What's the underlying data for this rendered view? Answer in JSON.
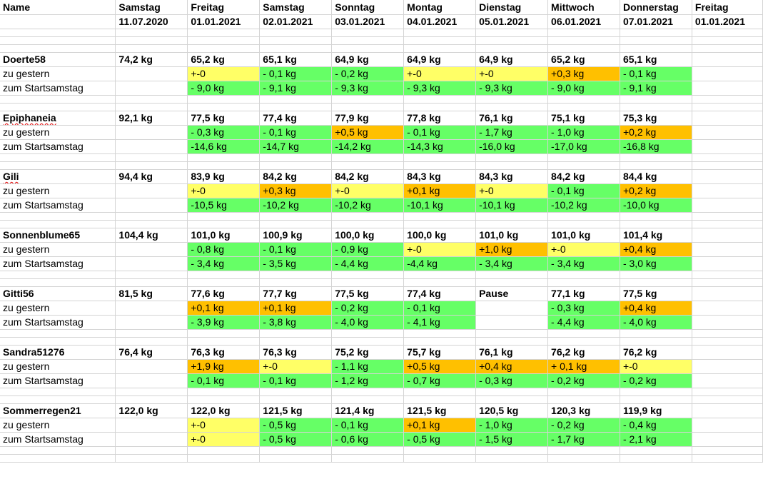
{
  "colors": {
    "yellow": "#ffff66",
    "green": "#66ff66",
    "orange": "#ffc000",
    "grid": "#d4d4d4"
  },
  "header": {
    "name_label": "Name",
    "columns": [
      {
        "day": "Samstag",
        "date": "11.07.2020"
      },
      {
        "day": "Freitag",
        "date": "01.01.2021"
      },
      {
        "day": "Samstag",
        "date": "02.01.2021"
      },
      {
        "day": "Sonntag",
        "date": "03.01.2021"
      },
      {
        "day": "Montag",
        "date": "04.01.2021"
      },
      {
        "day": "Dienstag",
        "date": "05.01.2021"
      },
      {
        "day": "Mittwoch",
        "date": "06.01.2021"
      },
      {
        "day": "Donnerstag",
        "date": "07.01.2021"
      },
      {
        "day": "Freitag",
        "date": "01.01.2021"
      }
    ]
  },
  "row_labels": {
    "diff_day": "zu gestern",
    "diff_start": "zum Startsamstag"
  },
  "people": [
    {
      "name": "Doerte58",
      "spell_flag": false,
      "start": "74,2 kg",
      "weights": [
        "65,2 kg",
        "65,1 kg",
        "64,9 kg",
        "64,9 kg",
        "64,9 kg",
        "65,2 kg",
        "65,1 kg"
      ],
      "diff_day": [
        {
          "v": "+-0",
          "c": "y"
        },
        {
          "v": "- 0,1 kg",
          "c": "g"
        },
        {
          "v": "- 0,2 kg",
          "c": "g"
        },
        {
          "v": "+-0",
          "c": "y"
        },
        {
          "v": "+-0",
          "c": "y"
        },
        {
          "v": "+0,3 kg",
          "c": "o"
        },
        {
          "v": "- 0,1 kg",
          "c": "g"
        }
      ],
      "diff_start": [
        {
          "v": "- 9,0 kg",
          "c": "g"
        },
        {
          "v": "- 9,1 kg",
          "c": "g"
        },
        {
          "v": "- 9,3 kg",
          "c": "g"
        },
        {
          "v": "- 9,3 kg",
          "c": "g"
        },
        {
          "v": "- 9,3 kg",
          "c": "g"
        },
        {
          "v": "- 9,0 kg",
          "c": "g"
        },
        {
          "v": "- 9,1 kg",
          "c": "g"
        }
      ]
    },
    {
      "name": "Epiphaneia",
      "spell_flag": true,
      "start": "92,1 kg",
      "weights": [
        "77,5 kg",
        "77,4 kg",
        "77,9 kg",
        "77,8 kg",
        "76,1 kg",
        "75,1 kg",
        "75,3 kg"
      ],
      "diff_day": [
        {
          "v": "- 0,3 kg",
          "c": "g"
        },
        {
          "v": "- 0,1 kg",
          "c": "g"
        },
        {
          "v": "+0,5 kg",
          "c": "o"
        },
        {
          "v": "- 0,1 kg",
          "c": "g"
        },
        {
          "v": "- 1,7 kg",
          "c": "g"
        },
        {
          "v": "- 1,0 kg",
          "c": "g"
        },
        {
          "v": "+0,2 kg",
          "c": "o"
        }
      ],
      "diff_start": [
        {
          "v": "-14,6 kg",
          "c": "g"
        },
        {
          "v": "-14,7 kg",
          "c": "g"
        },
        {
          "v": "-14,2 kg",
          "c": "g"
        },
        {
          "v": "-14,3 kg",
          "c": "g"
        },
        {
          "v": "-16,0 kg",
          "c": "g"
        },
        {
          "v": "-17,0 kg",
          "c": "g"
        },
        {
          "v": "-16,8 kg",
          "c": "g"
        }
      ]
    },
    {
      "name": "Gili",
      "spell_flag": true,
      "start": "94,4 kg",
      "weights": [
        "83,9 kg",
        "84,2 kg",
        "84,2 kg",
        "84,3 kg",
        "84,3 kg",
        "84,2 kg",
        "84,4 kg"
      ],
      "diff_day": [
        {
          "v": "+-0",
          "c": "y"
        },
        {
          "v": "+0,3 kg",
          "c": "o"
        },
        {
          "v": "+-0",
          "c": "y"
        },
        {
          "v": "+0,1 kg",
          "c": "o"
        },
        {
          "v": "+-0",
          "c": "y"
        },
        {
          "v": "- 0,1 kg",
          "c": "g"
        },
        {
          "v": "+0,2 kg",
          "c": "o"
        }
      ],
      "diff_start": [
        {
          "v": "-10,5 kg",
          "c": "g"
        },
        {
          "v": "-10,2 kg",
          "c": "g"
        },
        {
          "v": "-10,2 kg",
          "c": "g"
        },
        {
          "v": "-10,1 kg",
          "c": "g"
        },
        {
          "v": "-10,1 kg",
          "c": "g"
        },
        {
          "v": "-10,2 kg",
          "c": "g"
        },
        {
          "v": "-10,0 kg",
          "c": "g"
        }
      ]
    },
    {
      "name": "Sonnenblume65",
      "spell_flag": false,
      "start": "104,4 kg",
      "weights": [
        "101,0 kg",
        "100,9 kg",
        "100,0 kg",
        "100,0 kg",
        "101,0 kg",
        "101,0 kg",
        "101,4 kg"
      ],
      "diff_day": [
        {
          "v": "- 0,8 kg",
          "c": "g"
        },
        {
          "v": "- 0,1 kg",
          "c": "g"
        },
        {
          "v": "- 0,9 kg",
          "c": "g"
        },
        {
          "v": "+-0",
          "c": "y"
        },
        {
          "v": "+1,0 kg",
          "c": "o"
        },
        {
          "v": "+-0",
          "c": "y"
        },
        {
          "v": "+0,4 kg",
          "c": "o"
        }
      ],
      "diff_start": [
        {
          "v": "- 3,4 kg",
          "c": "g"
        },
        {
          "v": "- 3,5 kg",
          "c": "g"
        },
        {
          "v": "- 4,4 kg",
          "c": "g"
        },
        {
          "v": "-4,4 kg",
          "c": "g"
        },
        {
          "v": "- 3,4 kg",
          "c": "g"
        },
        {
          "v": "- 3,4 kg",
          "c": "g"
        },
        {
          "v": "- 3,0 kg",
          "c": "g"
        }
      ]
    },
    {
      "name": "Gitti56",
      "spell_flag": false,
      "start": "81,5 kg",
      "weights": [
        "77,6 kg",
        "77,7 kg",
        "77,5 kg",
        "77,4 kg",
        "Pause",
        "77,1 kg",
        "77,5 kg"
      ],
      "diff_day": [
        {
          "v": "+0,1 kg",
          "c": "o"
        },
        {
          "v": "+0,1 kg",
          "c": "o"
        },
        {
          "v": "- 0,2 kg",
          "c": "g"
        },
        {
          "v": "- 0,1 kg",
          "c": "g"
        },
        {
          "v": "",
          "c": ""
        },
        {
          "v": "- 0,3 kg",
          "c": "g"
        },
        {
          "v": "+0,4 kg",
          "c": "o"
        }
      ],
      "diff_start": [
        {
          "v": "- 3,9 kg",
          "c": "g"
        },
        {
          "v": "- 3,8 kg",
          "c": "g"
        },
        {
          "v": "- 4,0 kg",
          "c": "g"
        },
        {
          "v": "- 4,1 kg",
          "c": "g"
        },
        {
          "v": "",
          "c": ""
        },
        {
          "v": "- 4,4 kg",
          "c": "g"
        },
        {
          "v": "- 4,0 kg",
          "c": "g"
        }
      ]
    },
    {
      "name": "Sandra51276",
      "spell_flag": false,
      "start": "76,4 kg",
      "weights": [
        "76,3 kg",
        "76,3 kg",
        "75,2 kg",
        "75,7 kg",
        "76,1 kg",
        "76,2 kg",
        "76,2 kg"
      ],
      "diff_day": [
        {
          "v": "+1,9 kg",
          "c": "o"
        },
        {
          "v": "+-0",
          "c": "y"
        },
        {
          "v": "- 1,1 kg",
          "c": "g"
        },
        {
          "v": "+0,5 kg",
          "c": "o"
        },
        {
          "v": "+0,4 kg",
          "c": "o"
        },
        {
          "v": "+ 0,1 kg",
          "c": "o"
        },
        {
          "v": "+-0",
          "c": "y"
        }
      ],
      "diff_start": [
        {
          "v": "- 0,1 kg",
          "c": "g"
        },
        {
          "v": "- 0,1 kg",
          "c": "g"
        },
        {
          "v": "- 1,2 kg",
          "c": "g"
        },
        {
          "v": "- 0,7 kg",
          "c": "g"
        },
        {
          "v": "- 0,3 kg",
          "c": "g"
        },
        {
          "v": "- 0,2 kg",
          "c": "g"
        },
        {
          "v": "- 0,2 kg",
          "c": "g"
        }
      ]
    },
    {
      "name": "Sommerregen21",
      "spell_flag": false,
      "start": "122,0 kg",
      "weights": [
        "122,0 kg",
        "121,5 kg",
        "121,4 kg",
        "121,5 kg",
        "120,5 kg",
        "120,3 kg",
        "119,9 kg"
      ],
      "diff_day": [
        {
          "v": "+-0",
          "c": "y"
        },
        {
          "v": "- 0,5 kg",
          "c": "g"
        },
        {
          "v": "- 0,1 kg",
          "c": "g"
        },
        {
          "v": "+0,1 kg",
          "c": "o"
        },
        {
          "v": "- 1,0 kg",
          "c": "g"
        },
        {
          "v": "- 0,2 kg",
          "c": "g"
        },
        {
          "v": "- 0,4 kg",
          "c": "g"
        }
      ],
      "diff_start": [
        {
          "v": "+-0",
          "c": "y"
        },
        {
          "v": "- 0,5 kg",
          "c": "g"
        },
        {
          "v": "- 0,6 kg",
          "c": "g"
        },
        {
          "v": "- 0,5 kg",
          "c": "g"
        },
        {
          "v": "- 1,5 kg",
          "c": "g"
        },
        {
          "v": "- 1,7 kg",
          "c": "g"
        },
        {
          "v": "- 2,1 kg",
          "c": "g"
        }
      ]
    }
  ]
}
